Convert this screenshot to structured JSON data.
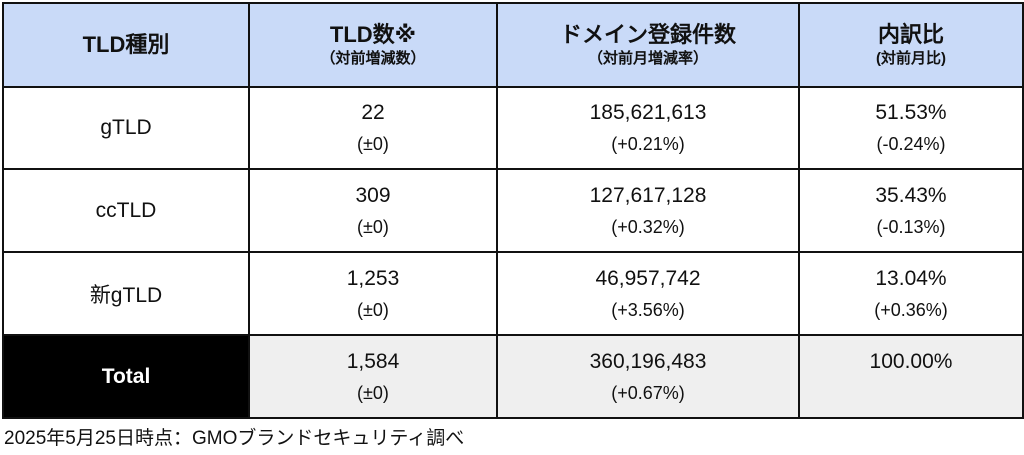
{
  "table": {
    "headers": [
      {
        "main": "TLD種別",
        "sub": ""
      },
      {
        "main": "TLD数※",
        "sub": "（対前増減数）"
      },
      {
        "main": "ドメイン登録件数",
        "sub": "（対前月増減率）"
      },
      {
        "main": "内訳比",
        "sub": "(対前月比)"
      }
    ],
    "rows": [
      {
        "label": "gTLD",
        "count": "22",
        "count_diff": "(±0)",
        "domains": "185,621,613",
        "domains_rate": "(+0.21%)",
        "share": "51.53%",
        "share_diff": "(-0.24%)"
      },
      {
        "label": "ccTLD",
        "count": "309",
        "count_diff": "(±0)",
        "domains": "127,617,128",
        "domains_rate": "(+0.32%)",
        "share": "35.43%",
        "share_diff": "(-0.13%)"
      },
      {
        "label": "新gTLD",
        "count": "1,253",
        "count_diff": "(±0)",
        "domains": "46,957,742",
        "domains_rate": "(+3.56%)",
        "share": "13.04%",
        "share_diff": "(+0.36%)"
      }
    ],
    "total": {
      "label": "Total",
      "count": "1,584",
      "count_diff": "(±0)",
      "domains": "360,196,483",
      "domains_rate": "(+0.67%)",
      "share": "100.00%"
    }
  },
  "caption": "2025年5月25日時点：GMOブランドセキュリティ調べ",
  "colors": {
    "header_bg": "#c9daf8",
    "total_label_bg": "#000000",
    "total_row_bg": "#efefef"
  }
}
